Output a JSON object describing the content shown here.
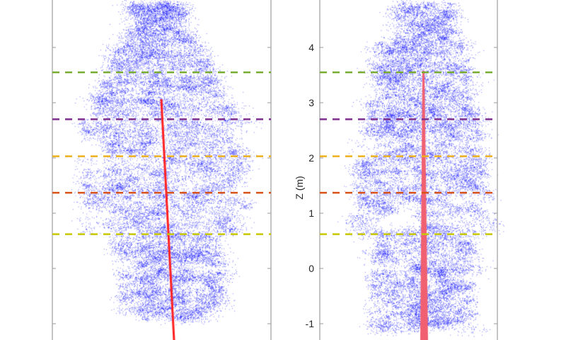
{
  "chart_data": [
    {
      "type": "scatter",
      "panel": "left",
      "description_visible": "tree point cloud (leaves blue, stem red)",
      "ylim": [
        -1.3,
        5.5
      ],
      "yticks": [
        -1,
        0,
        1,
        2,
        3,
        4
      ],
      "ytick_labels_shown": false,
      "layer_lines_z": [
        3.55,
        2.7,
        2.03,
        1.37,
        0.62
      ],
      "colors": {
        "leaf": "#0000ff",
        "stem": "#ff0000"
      }
    },
    {
      "type": "scatter",
      "panel": "right",
      "ylabel": "Z (m)",
      "ylim": [
        -1.3,
        5.5
      ],
      "yticks": [
        -1,
        0,
        1,
        2,
        3,
        4
      ],
      "ytick_labels": [
        "-1",
        "0",
        "1",
        "2",
        "3",
        "4"
      ],
      "layer_lines_z": [
        3.55,
        2.7,
        2.03,
        1.37,
        0.62
      ],
      "colors": {
        "leaf": "#0000ff",
        "stem": "#f06070"
      }
    }
  ],
  "layer_colors": [
    "#77ac30",
    "#7e2f8e",
    "#edb120",
    "#d95319",
    "#c8c800"
  ]
}
